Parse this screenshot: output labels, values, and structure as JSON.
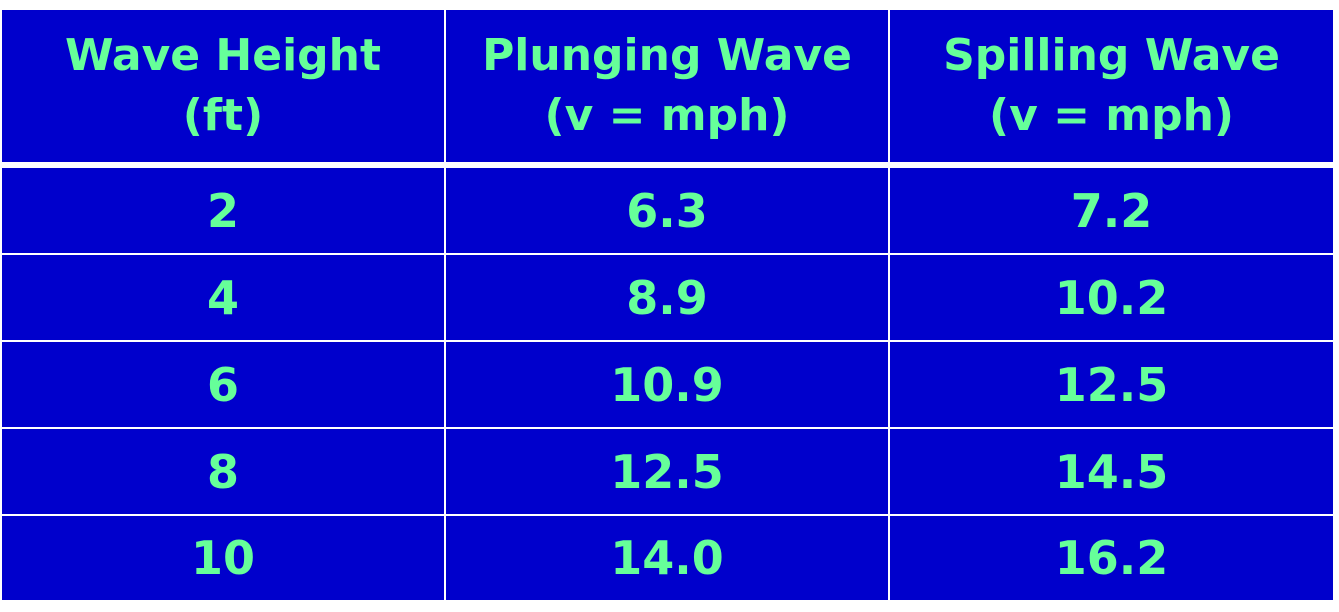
{
  "table": {
    "headers": [
      {
        "line1": "Wave Height",
        "line2": "(ft)"
      },
      {
        "line1": "Plunging Wave",
        "line2": "(v = mph)"
      },
      {
        "line1": "Spilling Wave",
        "line2": "(v = mph)"
      }
    ],
    "rows": [
      [
        "2",
        "6.3",
        "7.2"
      ],
      [
        "4",
        "8.9",
        "10.2"
      ],
      [
        "6",
        "10.9",
        "12.5"
      ],
      [
        "8",
        "12.5",
        "14.5"
      ],
      [
        "10",
        "14.0",
        "16.2"
      ]
    ]
  },
  "colors": {
    "cell_background": "#0000CC",
    "text": "#66FF99",
    "grid_lines": "#FFFFFF"
  },
  "chart_data": {
    "type": "table",
    "title": "",
    "columns": [
      "Wave Height (ft)",
      "Plunging Wave (v = mph)",
      "Spilling Wave (v = mph)"
    ],
    "categories": [
      2,
      4,
      6,
      8,
      10
    ],
    "series": [
      {
        "name": "Plunging Wave (v = mph)",
        "values": [
          6.3,
          8.9,
          10.9,
          12.5,
          14.0
        ]
      },
      {
        "name": "Spilling Wave (v = mph)",
        "values": [
          7.2,
          10.2,
          12.5,
          14.5,
          16.2
        ]
      }
    ],
    "xlabel": "Wave Height (ft)",
    "ylabel": "v (mph)"
  }
}
